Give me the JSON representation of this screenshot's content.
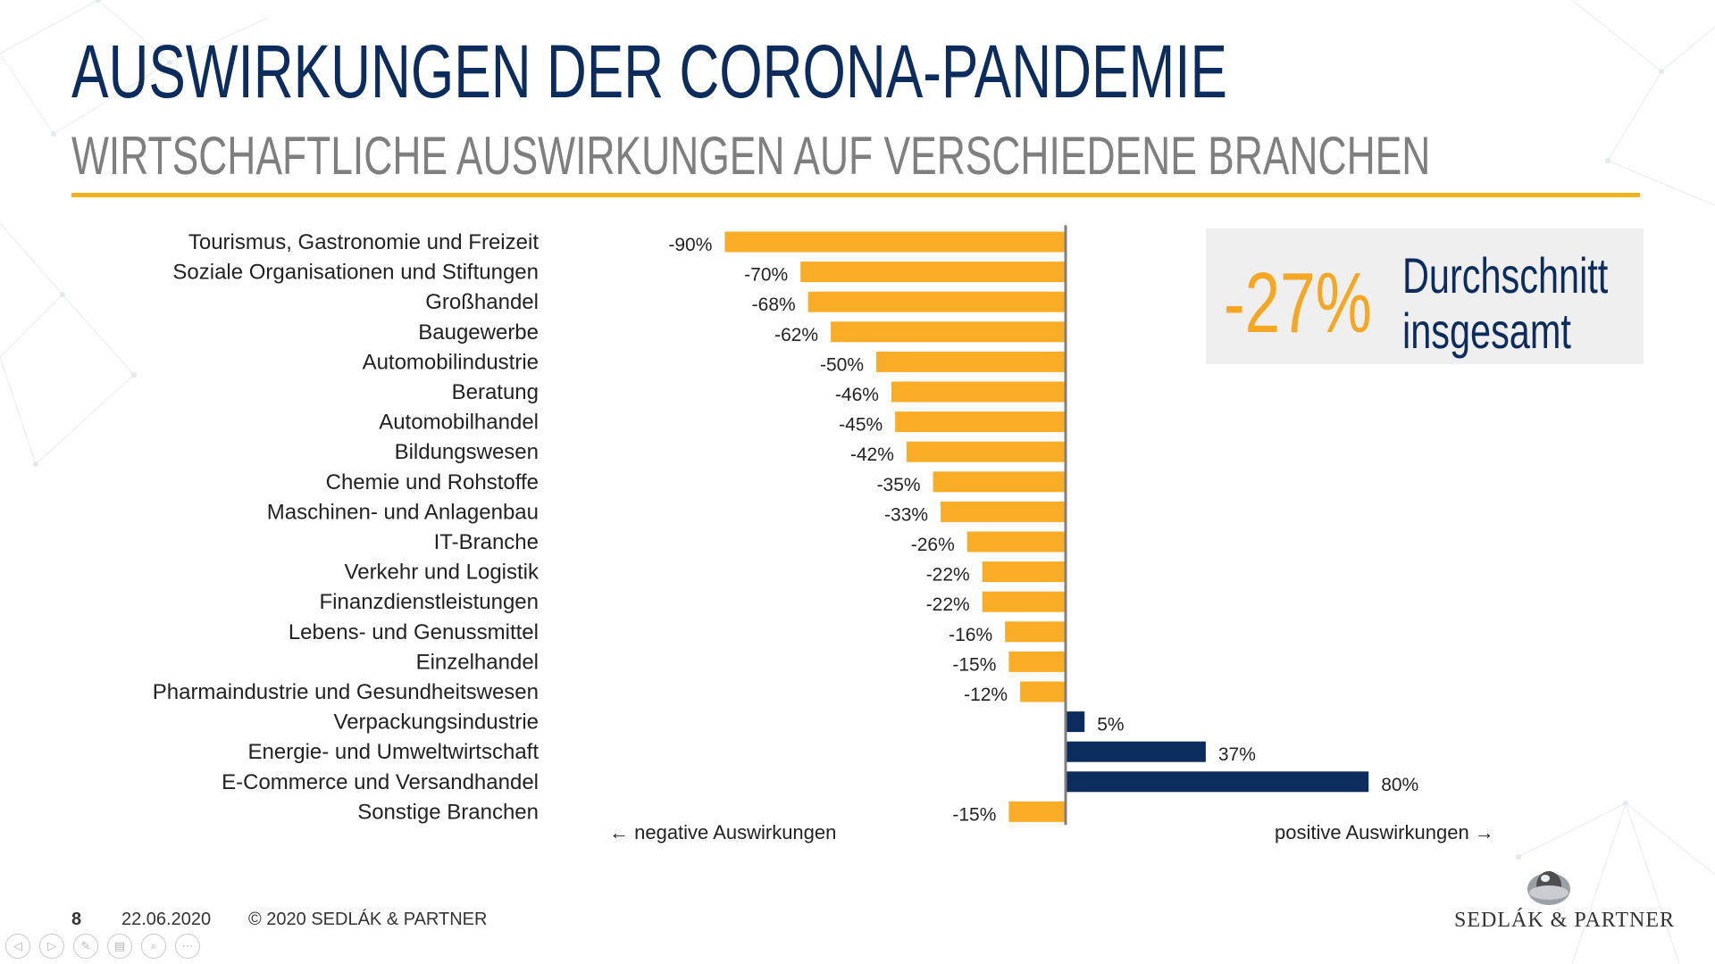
{
  "header": {
    "title": "AUSWIRKUNGEN DER CORONA-PANDEMIE",
    "subtitle": "WIRTSCHAFTLICHE AUSWIRKUNGEN AUF VERSCHIEDENE BRANCHEN"
  },
  "summary": {
    "value": "-27%",
    "label_line1": "Durchschnitt",
    "label_line2": "insgesamt"
  },
  "axis_notes": {
    "negative": "← negative Auswirkungen",
    "positive": "positive Auswirkungen →"
  },
  "footer": {
    "page": "8",
    "date": "22.06.2020",
    "copyright": "© 2020 SEDLÁK & PARTNER",
    "logo_text": "SEDLÁK & PARTNER"
  },
  "nav": {
    "icons": [
      "prev-icon",
      "next-icon",
      "pen-icon",
      "slides-icon",
      "zoom-icon",
      "more-icon"
    ],
    "glyphs": [
      "◁",
      "▷",
      "✎",
      "▤",
      "⌕",
      "⋯"
    ]
  },
  "colors": {
    "negative": "#f9ac26",
    "positive": "#0b2c5c",
    "accent": "#f5b21d",
    "title": "#0b2c5c",
    "subtitle": "#7f7f7f"
  },
  "chart_data": {
    "type": "bar",
    "orientation": "horizontal",
    "categories": [
      "Tourismus, Gastronomie und Freizeit",
      "Soziale Organisationen und Stiftungen",
      "Großhandel",
      "Baugewerbe",
      "Automobilindustrie",
      "Beratung",
      "Automobilhandel",
      "Bildungswesen",
      "Chemie und Rohstoffe",
      "Maschinen- und Anlagenbau",
      "IT-Branche",
      "Verkehr und Logistik",
      "Finanzdienstleistungen",
      "Lebens- und Genussmittel",
      "Einzelhandel",
      "Pharmaindustrie und Gesundheitswesen",
      "Verpackungsindustrie",
      "Energie- und Umweltwirtschaft",
      "E-Commerce und Versandhandel",
      "Sonstige Branchen"
    ],
    "values": [
      -90,
      -70,
      -68,
      -62,
      -50,
      -46,
      -45,
      -42,
      -35,
      -33,
      -26,
      -22,
      -22,
      -16,
      -15,
      -12,
      5,
      37,
      80,
      -15
    ],
    "value_labels": [
      "-90%",
      "-70%",
      "-68%",
      "-62%",
      "-50%",
      "-46%",
      "-45%",
      "-42%",
      "-35%",
      "-33%",
      "-26%",
      "-22%",
      "-22%",
      "-16%",
      "-15%",
      "-12%",
      "5%",
      "37%",
      "80%",
      "-15%"
    ],
    "unit": "%",
    "xlim": [
      -90,
      80
    ],
    "title": "WIRTSCHAFTLICHE AUSWIRKUNGEN AUF VERSCHIEDENE BRANCHEN",
    "xlabel": "",
    "ylabel": "",
    "grid": false
  }
}
